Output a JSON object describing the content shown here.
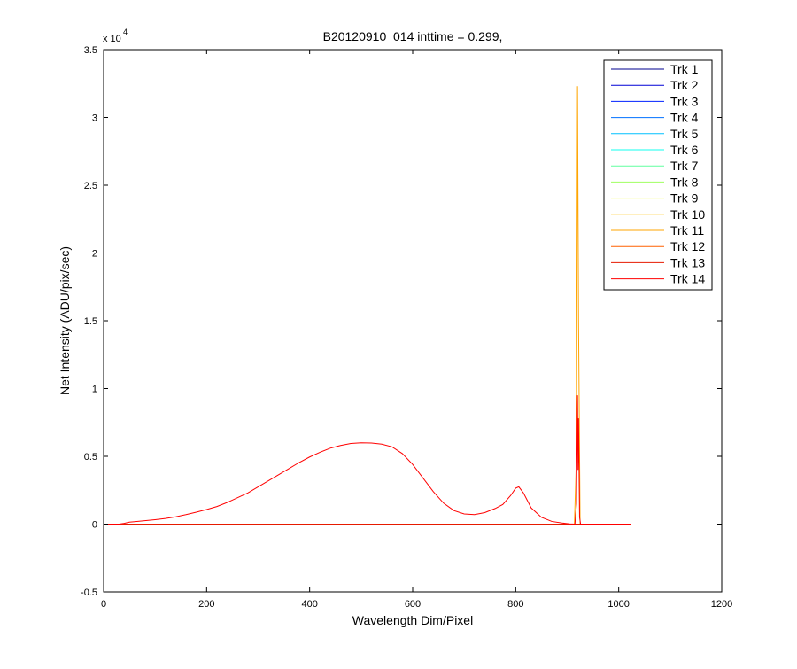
{
  "chart_data": {
    "type": "line",
    "title": "B20120910_014 inttime = 0.299,",
    "xlabel": "Wavelength Dim/Pixel",
    "ylabel": "Net Intensity (ADU/pix/sec)",
    "xlim": [
      0,
      1200
    ],
    "ylim": [
      -5000,
      35000
    ],
    "x_ticks": [
      0,
      200,
      400,
      600,
      800,
      1000,
      1200
    ],
    "y_ticks": [
      -0.5,
      0,
      0.5,
      1,
      1.5,
      2,
      2.5,
      3,
      3.5
    ],
    "y_multiplier_base": "x 10",
    "y_multiplier_exp": "4",
    "y_scale": 10000,
    "legend_position": "top-right",
    "grid": false,
    "series": [
      {
        "name": "Trk 1",
        "color": "#00008f",
        "points": [
          [
            0,
            0
          ],
          [
            1024,
            0
          ]
        ]
      },
      {
        "name": "Trk 2",
        "color": "#0000d6",
        "points": [
          [
            0,
            0
          ],
          [
            1024,
            0
          ]
        ]
      },
      {
        "name": "Trk 3",
        "color": "#0020ff",
        "points": [
          [
            0,
            0
          ],
          [
            1024,
            0
          ]
        ]
      },
      {
        "name": "Trk 4",
        "color": "#0070ff",
        "points": [
          [
            0,
            0
          ],
          [
            1024,
            0
          ]
        ]
      },
      {
        "name": "Trk 5",
        "color": "#00c0ff",
        "points": [
          [
            0,
            0
          ],
          [
            1024,
            0
          ]
        ]
      },
      {
        "name": "Trk 6",
        "color": "#10ffef",
        "points": [
          [
            0,
            0
          ],
          [
            1024,
            0
          ]
        ]
      },
      {
        "name": "Trk 7",
        "color": "#60ff9f",
        "points": [
          [
            0,
            0
          ],
          [
            1024,
            0
          ]
        ]
      },
      {
        "name": "Trk 8",
        "color": "#9fff60",
        "points": [
          [
            0,
            0
          ],
          [
            1024,
            0
          ]
        ]
      },
      {
        "name": "Trk 9",
        "color": "#efff10",
        "points": [
          [
            0,
            0
          ],
          [
            1024,
            0
          ]
        ]
      },
      {
        "name": "Trk 10",
        "color": "#ffc000",
        "points": [
          [
            0,
            0
          ],
          [
            1024,
            0
          ]
        ]
      },
      {
        "name": "Trk 11",
        "color": "#ffa500",
        "points": [
          [
            0,
            0
          ],
          [
            914,
            0
          ],
          [
            918,
            5000
          ],
          [
            920,
            32300
          ],
          [
            922,
            15000
          ],
          [
            925,
            0
          ],
          [
            1024,
            0
          ]
        ]
      },
      {
        "name": "Trk 12",
        "color": "#ff6000",
        "points": [
          [
            0,
            0
          ],
          [
            1024,
            0
          ]
        ]
      },
      {
        "name": "Trk 13",
        "color": "#e61a00",
        "points": [
          [
            0,
            0
          ],
          [
            1024,
            0
          ]
        ]
      },
      {
        "name": "Trk 14",
        "color": "#ff0000",
        "points": [
          [
            0,
            0
          ],
          [
            30,
            0
          ],
          [
            40,
            60
          ],
          [
            50,
            150
          ],
          [
            60,
            180
          ],
          [
            80,
            250
          ],
          [
            100,
            330
          ],
          [
            120,
            420
          ],
          [
            140,
            540
          ],
          [
            160,
            700
          ],
          [
            180,
            880
          ],
          [
            200,
            1080
          ],
          [
            220,
            1300
          ],
          [
            240,
            1600
          ],
          [
            260,
            1950
          ],
          [
            280,
            2300
          ],
          [
            300,
            2750
          ],
          [
            320,
            3200
          ],
          [
            340,
            3650
          ],
          [
            360,
            4100
          ],
          [
            380,
            4550
          ],
          [
            400,
            4950
          ],
          [
            420,
            5300
          ],
          [
            440,
            5600
          ],
          [
            460,
            5800
          ],
          [
            480,
            5950
          ],
          [
            500,
            6000
          ],
          [
            520,
            5980
          ],
          [
            540,
            5900
          ],
          [
            560,
            5700
          ],
          [
            580,
            5200
          ],
          [
            600,
            4400
          ],
          [
            620,
            3400
          ],
          [
            640,
            2400
          ],
          [
            660,
            1550
          ],
          [
            680,
            1000
          ],
          [
            700,
            750
          ],
          [
            720,
            700
          ],
          [
            740,
            850
          ],
          [
            760,
            1150
          ],
          [
            775,
            1450
          ],
          [
            790,
            2100
          ],
          [
            800,
            2650
          ],
          [
            806,
            2750
          ],
          [
            815,
            2300
          ],
          [
            830,
            1200
          ],
          [
            850,
            500
          ],
          [
            870,
            200
          ],
          [
            890,
            80
          ],
          [
            905,
            20
          ],
          [
            915,
            0
          ],
          [
            918,
            1500
          ],
          [
            920,
            9500
          ],
          [
            921,
            4000
          ],
          [
            922,
            7800
          ],
          [
            924,
            500
          ],
          [
            926,
            0
          ],
          [
            1024,
            0
          ]
        ]
      }
    ]
  }
}
